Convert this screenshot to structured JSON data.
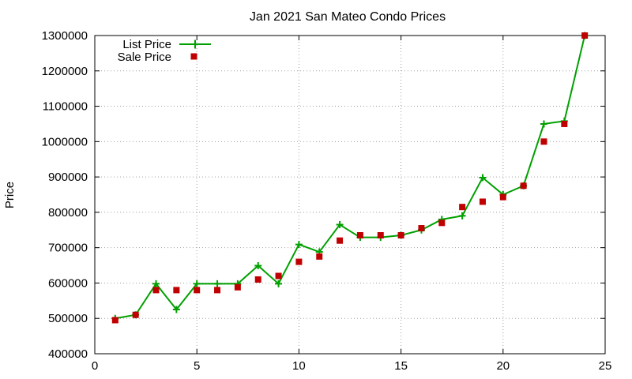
{
  "chart_data": {
    "type": "line",
    "title": "Jan 2021 San Mateo Condo Prices",
    "xlabel": "",
    "ylabel": "Price",
    "xlim": [
      0,
      25
    ],
    "ylim": [
      400000,
      1300000
    ],
    "xticks": [
      0,
      5,
      10,
      15,
      20,
      25
    ],
    "yticks": [
      400000,
      500000,
      600000,
      700000,
      800000,
      900000,
      1000000,
      1100000,
      1200000,
      1300000
    ],
    "grid": true,
    "legend_position": "top-left",
    "x": [
      1,
      2,
      3,
      4,
      5,
      6,
      7,
      8,
      9,
      10,
      11,
      12,
      13,
      14,
      15,
      16,
      17,
      18,
      19,
      20,
      21,
      22,
      23,
      24
    ],
    "series": [
      {
        "name": "List Price",
        "style": "line-with-plus-markers",
        "color": "#00a000",
        "values": [
          500000,
          510000,
          598000,
          525000,
          598000,
          598000,
          598000,
          649000,
          598000,
          709000,
          688000,
          765000,
          729000,
          729000,
          735000,
          750000,
          780000,
          790000,
          898000,
          850000,
          875000,
          1050000,
          1058000,
          1300000
        ]
      },
      {
        "name": "Sale Price",
        "style": "square-markers",
        "color": "#c00000",
        "values": [
          495000,
          510000,
          580000,
          580000,
          580000,
          580000,
          588000,
          610000,
          620000,
          660000,
          675000,
          720000,
          735000,
          735000,
          735000,
          755000,
          770000,
          815000,
          830000,
          843000,
          875000,
          1000000,
          1050000,
          1300000
        ]
      }
    ]
  }
}
